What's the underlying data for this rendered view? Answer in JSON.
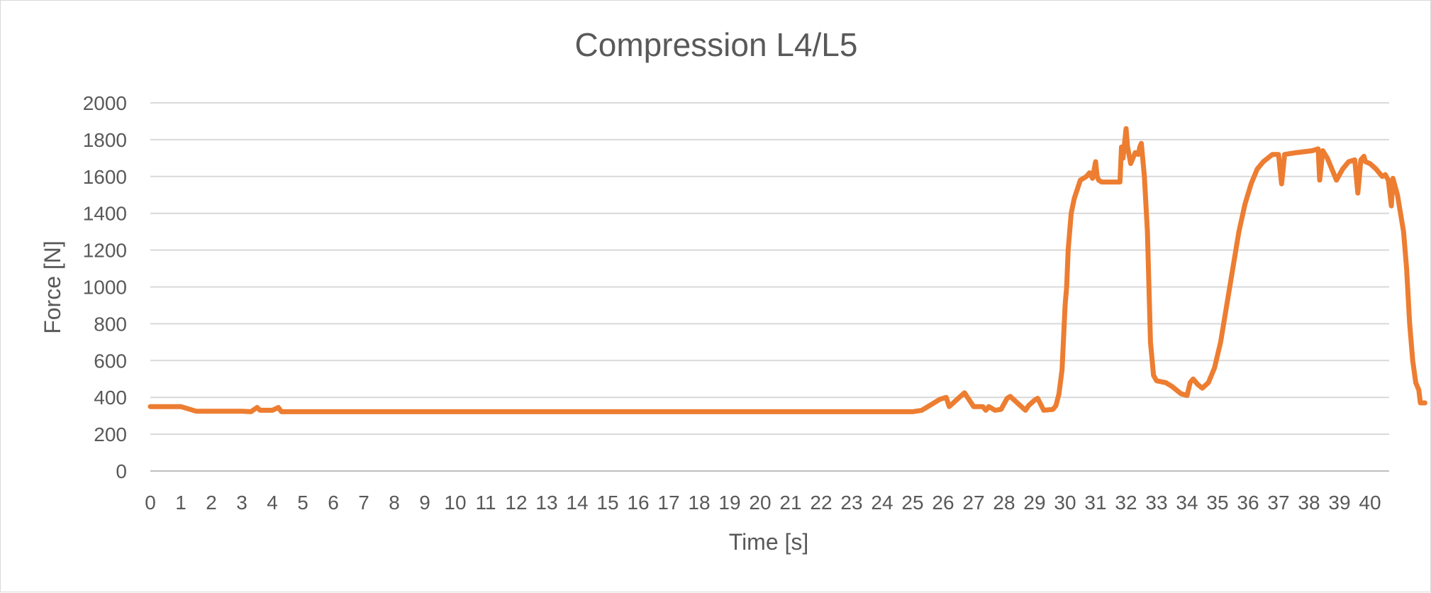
{
  "chart_data": {
    "type": "line",
    "title": "Compression L4/L5",
    "xlabel": "Time [s]",
    "ylabel": "Force [N]",
    "xlim": [
      0,
      40.5
    ],
    "ylim": [
      0,
      2000
    ],
    "x_ticks": [
      "0",
      "1",
      "2",
      "3",
      "4",
      "5",
      "6",
      "7",
      "8",
      "9",
      "10",
      "11",
      "12",
      "13",
      "14",
      "15",
      "16",
      "17",
      "18",
      "19",
      "20",
      "21",
      "22",
      "23",
      "24",
      "25",
      "26",
      "27",
      "28",
      "29",
      "30",
      "31",
      "32",
      "33",
      "34",
      "35",
      "36",
      "37",
      "38",
      "39",
      "40"
    ],
    "y_ticks": [
      "0",
      "200",
      "400",
      "600",
      "800",
      "1000",
      "1200",
      "1400",
      "1600",
      "1800",
      "2000"
    ],
    "grid": true,
    "legend": "none",
    "series": [
      {
        "color": "#ED7D31",
        "points": [
          [
            0,
            350
          ],
          [
            1,
            350
          ],
          [
            1.2,
            340
          ],
          [
            1.5,
            325
          ],
          [
            3,
            325
          ],
          [
            3.3,
            322
          ],
          [
            3.5,
            345
          ],
          [
            3.6,
            330
          ],
          [
            4,
            330
          ],
          [
            4.2,
            345
          ],
          [
            4.3,
            322
          ],
          [
            4.5,
            322
          ],
          [
            25,
            322
          ],
          [
            25.3,
            330
          ],
          [
            25.6,
            360
          ],
          [
            25.9,
            390
          ],
          [
            26.1,
            400
          ],
          [
            26.2,
            350
          ],
          [
            26.4,
            380
          ],
          [
            26.7,
            425
          ],
          [
            27,
            350
          ],
          [
            27.3,
            350
          ],
          [
            27.4,
            330
          ],
          [
            27.5,
            350
          ],
          [
            27.7,
            330
          ],
          [
            27.9,
            335
          ],
          [
            28.1,
            395
          ],
          [
            28.2,
            405
          ],
          [
            28.5,
            360
          ],
          [
            28.7,
            330
          ],
          [
            28.8,
            355
          ],
          [
            29,
            385
          ],
          [
            29.1,
            395
          ],
          [
            29.3,
            330
          ],
          [
            29.6,
            335
          ],
          [
            29.7,
            355
          ],
          [
            29.8,
            420
          ],
          [
            29.9,
            550
          ],
          [
            30,
            900
          ],
          [
            30.05,
            1000
          ],
          [
            30.1,
            1200
          ],
          [
            30.2,
            1400
          ],
          [
            30.3,
            1480
          ],
          [
            30.5,
            1580
          ],
          [
            30.7,
            1600
          ],
          [
            30.8,
            1620
          ],
          [
            30.9,
            1590
          ],
          [
            31,
            1680
          ],
          [
            31.05,
            1600
          ],
          [
            31.1,
            1580
          ],
          [
            31.2,
            1570
          ],
          [
            31.8,
            1570
          ],
          [
            31.85,
            1760
          ],
          [
            31.9,
            1700
          ],
          [
            32,
            1860
          ],
          [
            32.05,
            1760
          ],
          [
            32.15,
            1670
          ],
          [
            32.3,
            1730
          ],
          [
            32.4,
            1720
          ],
          [
            32.45,
            1760
          ],
          [
            32.5,
            1780
          ],
          [
            32.6,
            1600
          ],
          [
            32.7,
            1300
          ],
          [
            32.8,
            700
          ],
          [
            32.9,
            520
          ],
          [
            33,
            490
          ],
          [
            33.3,
            480
          ],
          [
            33.5,
            460
          ],
          [
            33.8,
            420
          ],
          [
            34,
            410
          ],
          [
            34.1,
            480
          ],
          [
            34.2,
            500
          ],
          [
            34.35,
            470
          ],
          [
            34.5,
            450
          ],
          [
            34.7,
            480
          ],
          [
            34.9,
            560
          ],
          [
            35.1,
            700
          ],
          [
            35.3,
            900
          ],
          [
            35.5,
            1100
          ],
          [
            35.7,
            1300
          ],
          [
            35.9,
            1450
          ],
          [
            36.1,
            1560
          ],
          [
            36.3,
            1640
          ],
          [
            36.5,
            1680
          ],
          [
            36.8,
            1720
          ],
          [
            37,
            1720
          ],
          [
            37.1,
            1560
          ],
          [
            37.2,
            1720
          ],
          [
            37.6,
            1730
          ],
          [
            38.1,
            1740
          ],
          [
            38.3,
            1750
          ],
          [
            38.35,
            1580
          ],
          [
            38.45,
            1740
          ],
          [
            38.6,
            1700
          ],
          [
            38.8,
            1620
          ],
          [
            38.9,
            1580
          ],
          [
            39.1,
            1640
          ],
          [
            39.3,
            1680
          ],
          [
            39.5,
            1690
          ],
          [
            39.6,
            1510
          ],
          [
            39.7,
            1690
          ],
          [
            39.8,
            1710
          ],
          [
            39.85,
            1680
          ],
          [
            40,
            1670
          ],
          [
            40.2,
            1640
          ],
          [
            40.3,
            1620
          ],
          [
            40.4,
            1600
          ],
          [
            40.5,
            1610
          ],
          [
            40.6,
            1580
          ],
          [
            40.7,
            1440
          ],
          [
            40.75,
            1590
          ],
          [
            40.9,
            1500
          ],
          [
            41,
            1400
          ],
          [
            41.1,
            1300
          ],
          [
            41.2,
            1100
          ],
          [
            41.3,
            800
          ],
          [
            41.4,
            600
          ],
          [
            41.5,
            480
          ],
          [
            41.6,
            440
          ],
          [
            41.65,
            370
          ],
          [
            41.8,
            370
          ]
        ]
      }
    ]
  }
}
